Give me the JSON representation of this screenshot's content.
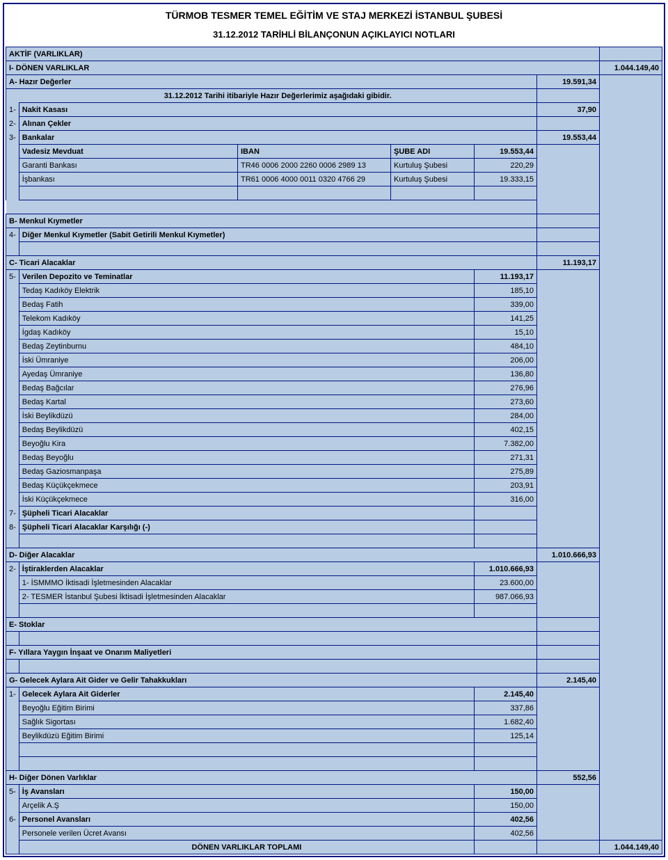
{
  "header": {
    "title": "TÜRMOB TESMER TEMEL EĞİTİM VE STAJ MERKEZİ İSTANBUL ŞUBESİ",
    "subtitle": "31.12.2012 TARİHLİ BİLANÇONUN AÇIKLAYICI NOTLARI"
  },
  "section_active": "AKTİF (VARLIKLAR)",
  "I": {
    "label": "I-   DÖNEN VARLIKLAR",
    "total": "1.044.149,40"
  },
  "A": {
    "label": "A- Hazır Değerler",
    "total": "19.591,34",
    "note": "31.12.2012 Tarihi itibariyle Hazır Değerlerimiz aşağıdaki gibidir."
  },
  "A1": {
    "idx": "1-",
    "label": "Nakit Kasası",
    "amt": "37,90"
  },
  "A2": {
    "idx": "2-",
    "label": "Alınan Çekler",
    "amt": ""
  },
  "A3": {
    "idx": "3-",
    "label": "Bankalar",
    "amt": "19.553,44"
  },
  "bank_header": {
    "c1": "Vadesiz Mevduat",
    "c2": "IBAN",
    "c3": "ŞUBE ADI",
    "c4": "19.553,44"
  },
  "bank1": {
    "name": "Garanti Bankası",
    "iban": "TR46 0006 2000 2260 0006 2989 13",
    "sube": "Kurtuluş Şubesi",
    "amt": "220,29"
  },
  "bank2": {
    "name": "İşbankası",
    "iban": "TR61 0006 4000 0011 0320 4766 29",
    "sube": "Kurtuluş Şubesi",
    "amt": "19.333,15"
  },
  "B": {
    "label": "B- Menkul Kıymetler"
  },
  "B4": {
    "idx": "4-",
    "label": "Diğer Menkul Kıymetler (Sabit Getirili Menkul Kıymetler)"
  },
  "C": {
    "label": "C-  Ticari Alacaklar",
    "total": "11.193,17"
  },
  "C5": {
    "idx": "5-",
    "label": "Verilen Depozito ve Teminatlar",
    "amt": "11.193,17"
  },
  "dep": [
    {
      "label": "Tedaş Kadıköy Elektrik",
      "amt": "185,10"
    },
    {
      "label": "Bedaş Fatih",
      "amt": "339,00"
    },
    {
      "label": "Telekom Kadıköy",
      "amt": "141,25"
    },
    {
      "label": "İgdaş Kadıköy",
      "amt": "15,10"
    },
    {
      "label": "Bedaş Zeytinburnu",
      "amt": "484,10"
    },
    {
      "label": "İski Ümraniye",
      "amt": "206,00"
    },
    {
      "label": "Ayedaş Ümraniye",
      "amt": "136,80"
    },
    {
      "label": "Bedaş Bağcılar",
      "amt": "276,96"
    },
    {
      "label": "Bedaş Kartal",
      "amt": "273,60"
    },
    {
      "label": "İski Beylikdüzü",
      "amt": "284,00"
    },
    {
      "label": "Bedaş Beylikdüzü",
      "amt": "402,15"
    },
    {
      "label": "Beyoğlu Kira",
      "amt": "7.382,00"
    },
    {
      "label": "Bedaş Beyoğlu",
      "amt": "271,31"
    },
    {
      "label": "Bedaş Gaziosmanpaşa",
      "amt": "275,89"
    },
    {
      "label": "Bedaş Küçükçekmece",
      "amt": "203,91"
    },
    {
      "label": "İski Küçükçekmece",
      "amt": "316,00"
    }
  ],
  "C7": {
    "idx": "7-",
    "label": "Şüpheli Ticari Alacaklar"
  },
  "C8": {
    "idx": "8-",
    "label": "Şüpheli Ticari Alacaklar Karşılığı (-)"
  },
  "D": {
    "label": "D-  Diğer Alacaklar",
    "total": "1.010.666,93"
  },
  "D2": {
    "idx": "2-",
    "label": "İştiraklerden Alacaklar",
    "amt": "1.010.666,93"
  },
  "D2a": {
    "label": "1- İSMMMO İktisadi İşletmesinden Alacaklar",
    "amt": "23.600,00"
  },
  "D2b": {
    "label": "2- TESMER İstanbul Şubesi İktisadi İşletmesinden Alacaklar",
    "amt": "987.066,93"
  },
  "E": {
    "label": "E-  Stoklar"
  },
  "F": {
    "label": "F-  Yıllara Yaygın İnşaat ve Onarım Maliyetleri"
  },
  "G": {
    "label": "G-  Gelecek Aylara Ait Gider ve Gelir Tahakkukları",
    "total": "2.145,40"
  },
  "G1": {
    "idx": "1-",
    "label": "Gelecek Aylara Ait Giderler",
    "amt": "2.145,40"
  },
  "G1a": {
    "label": "Beyoğlu Eğitim Birimi",
    "amt": "337,86"
  },
  "G1b": {
    "label": "Sağlık Sigortası",
    "amt": "1.682,40"
  },
  "G1c": {
    "label": "Beylikdüzü Eğitim Birimi",
    "amt": "125,14"
  },
  "H": {
    "label": "H-  Diğer Dönen Varlıklar",
    "total": "552,56"
  },
  "H5": {
    "idx": "5-",
    "label": "İş Avansları",
    "amt": "150,00"
  },
  "H5a": {
    "label": "Arçelik A.Ş",
    "amt": "150,00"
  },
  "H6": {
    "idx": "6-",
    "label": "Personel Avansları",
    "amt": "402,56"
  },
  "H6a": {
    "label": "Personele verilen Ücret Avansı",
    "amt": "402,56"
  },
  "footer": {
    "label": "DÖNEN VARLIKLAR TOPLAMI",
    "total": "1.044.149,40"
  },
  "colors": {
    "border": "#001480",
    "header_bg": "#b8cce4"
  }
}
